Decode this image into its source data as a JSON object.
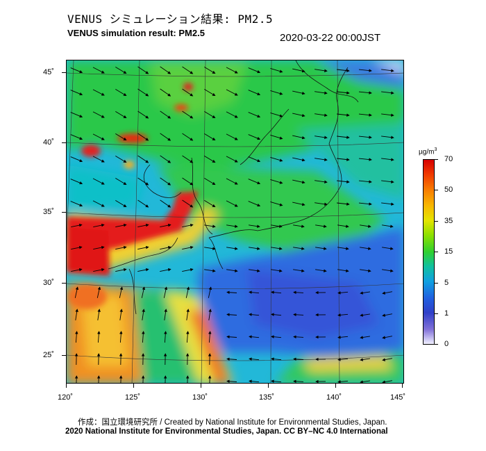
{
  "header": {
    "title_jp": "VENUS シミュレーション結果: PM2.5",
    "title_en": "VENUS simulation result: PM2.5",
    "timestamp": "2020-03-22 00:00JST"
  },
  "map": {
    "latitude_labels": [
      "45˚",
      "40˚",
      "35˚",
      "30˚",
      "25˚"
    ],
    "longitude_labels": [
      "120˚",
      "125˚",
      "130˚",
      "135˚",
      "140˚",
      "145˚"
    ],
    "colors": {
      "ocean_low": "#2f6fe0",
      "ocean_mid": "#17a8e8",
      "land_mid": "#26c53a",
      "high": "#e11b1b",
      "medium": "#f7a000"
    }
  },
  "colorbar": {
    "unit": "µg/m",
    "unit_sup": "3",
    "labels": [
      "70",
      "50",
      "35",
      "15",
      "5",
      "1",
      "0"
    ]
  },
  "footer": {
    "credit_line1": "作成：国立環境研究所 / Created by National Institute for Environmental Studies, Japan.",
    "credit_line2": "2020 National Institute for Environmental Studies, Japan. CC BY–NC 4.0 International"
  }
}
